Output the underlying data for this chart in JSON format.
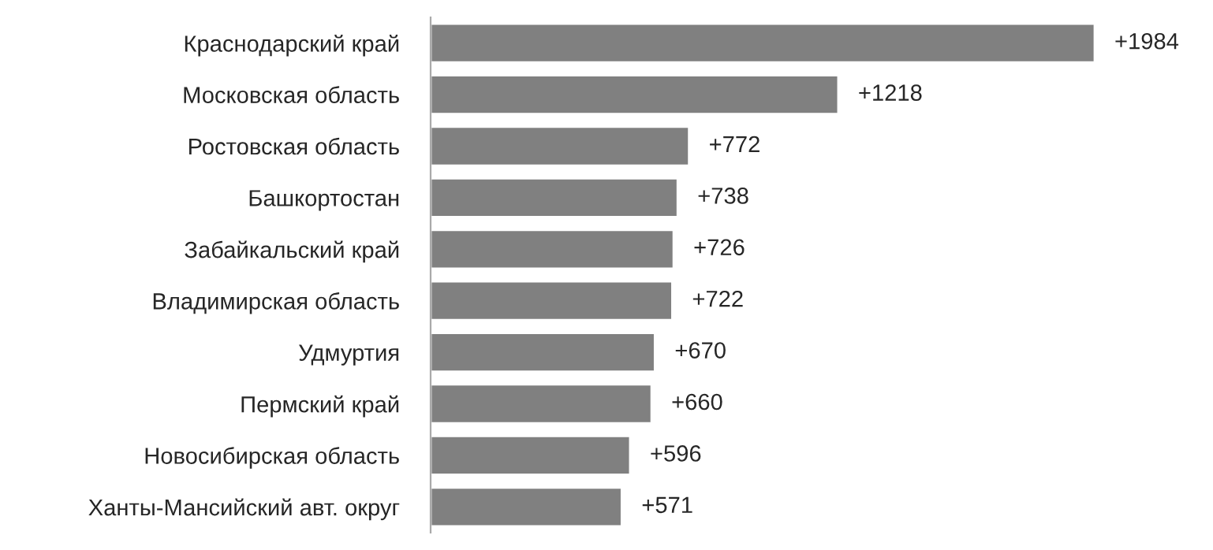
{
  "chart_data": {
    "type": "bar",
    "orientation": "horizontal",
    "categories": [
      "Краснодарский край",
      "Московская область",
      "Ростовская область",
      "Башкортостан",
      "Забайкальский край",
      "Владимирская область",
      "Удмуртия",
      "Пермский край",
      "Новосибирская область",
      "Ханты-Мансийский авт. округ"
    ],
    "values": [
      1984,
      1218,
      772,
      738,
      726,
      722,
      670,
      660,
      596,
      571
    ],
    "value_labels": [
      "+1984",
      "+1218",
      "+772",
      "+738",
      "+726",
      "+722",
      "+670",
      "+660",
      "+596",
      "+571"
    ],
    "color": "#808080",
    "grid": false,
    "legend": false,
    "tick_labels": "y"
  }
}
